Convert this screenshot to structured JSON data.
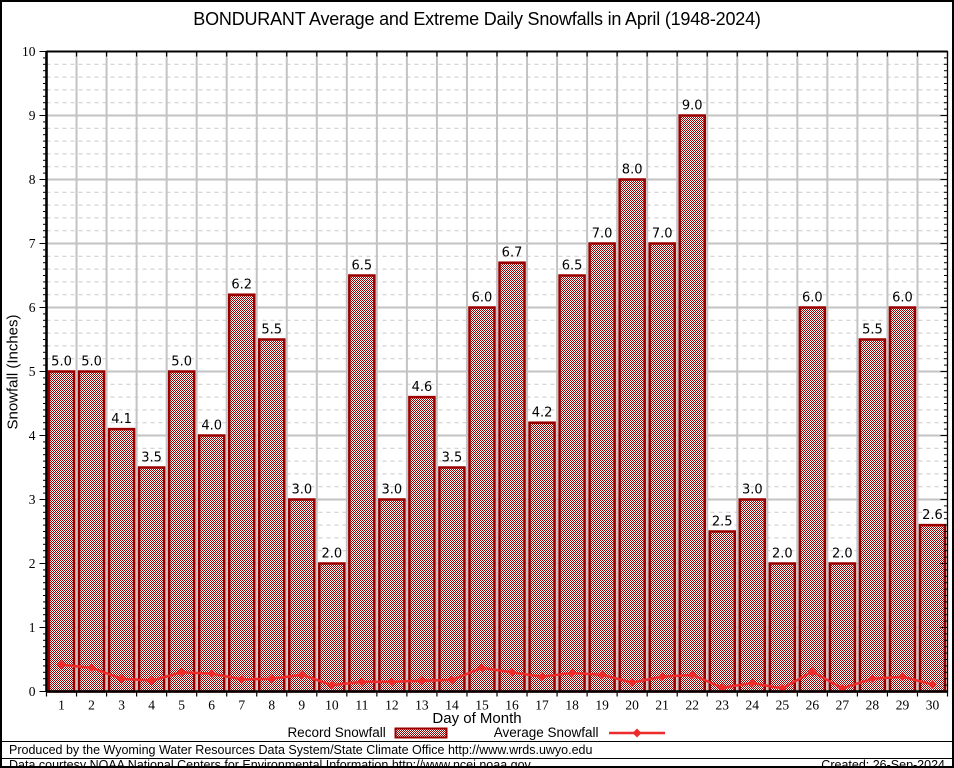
{
  "chart_data": {
    "type": "bar",
    "title": "BONDURANT Average and Extreme Daily Snowfalls in April (1948-2024)",
    "xlabel": "Day of Month",
    "ylabel": "Snowfall (Inches)",
    "ylim": [
      0,
      10
    ],
    "y_major_step": 1,
    "y_minor_step": 0.2,
    "grid": "on",
    "legend_position": "bottom",
    "categories": [
      1,
      2,
      3,
      4,
      5,
      6,
      7,
      8,
      9,
      10,
      11,
      12,
      13,
      14,
      15,
      16,
      17,
      18,
      19,
      20,
      21,
      22,
      23,
      24,
      25,
      26,
      27,
      28,
      29,
      30
    ],
    "series": [
      {
        "name": "Record Snowfall",
        "type": "bar",
        "values": [
          5.0,
          5.0,
          4.1,
          3.5,
          5.0,
          4.0,
          6.2,
          5.5,
          3.0,
          2.0,
          6.5,
          3.0,
          4.6,
          3.5,
          6.0,
          6.7,
          4.2,
          6.5,
          7.0,
          8.0,
          7.0,
          9.0,
          2.5,
          3.0,
          2.0,
          6.0,
          2.0,
          5.5,
          6.0,
          2.6
        ]
      },
      {
        "name": "Average Snowfall",
        "type": "line",
        "values": [
          0.42,
          0.37,
          0.2,
          0.17,
          0.3,
          0.28,
          0.19,
          0.2,
          0.26,
          0.1,
          0.15,
          0.15,
          0.17,
          0.18,
          0.37,
          0.3,
          0.23,
          0.29,
          0.26,
          0.14,
          0.23,
          0.26,
          0.06,
          0.13,
          0.05,
          0.31,
          0.05,
          0.2,
          0.23,
          0.11
        ]
      }
    ],
    "colors": {
      "bar_outline": "#990000",
      "bar_hatch": "#990000",
      "line": "#ED2B2B",
      "grid_major": "#c3c3c3",
      "grid_minor": "#c9c9c9",
      "axis": "#000000"
    }
  },
  "footer": {
    "line1": "Produced by the Wyoming Water Resources Data System/State Climate Office http://www.wrds.uwyo.edu",
    "line2": "Data courtesy NOAA National Centers for Environmental Information http://www.ncei.noaa.gov",
    "created": "Created: 26-Sep-2024"
  }
}
